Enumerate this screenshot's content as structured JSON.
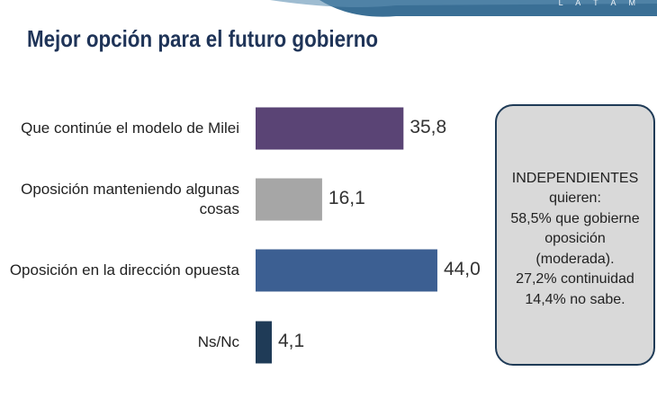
{
  "header": {
    "brand": "L A T A M",
    "title": "Mejor opción para el futuro gobierno"
  },
  "colors": {
    "banner": "#3a6f95",
    "bar_1": "#5a4475",
    "bar_2": "#a6a6a6",
    "bar_3": "#3c5f92",
    "bar_4": "#1f3b57"
  },
  "chart_data": {
    "type": "bar",
    "orientation": "horizontal",
    "title": "Mejor opción para el futuro gobierno",
    "categories": [
      "Que continúe el modelo de Milei",
      "Oposición manteniendo algunas cosas",
      "Oposición en la dirección opuesta",
      "Ns/Nc"
    ],
    "category_lines": [
      [
        "Que continúe el modelo de Milei"
      ],
      [
        "Oposición manteniendo algunas",
        "cosas"
      ],
      [
        "Oposición en la dirección opuesta"
      ],
      [
        "Ns/Nc"
      ]
    ],
    "values": [
      35.8,
      16.1,
      44.0,
      4.1
    ],
    "value_labels": [
      "35,8",
      "16,1",
      "44,0",
      "4,1"
    ],
    "xlabel": "",
    "ylabel": "",
    "grid": false,
    "legend": "none"
  },
  "callout": {
    "lines": [
      "INDEPENDIENTES",
      "quieren:",
      "58,5% que gobierne",
      "oposición",
      "(moderada).",
      "27,2% continuidad",
      "14,4% no sabe."
    ]
  }
}
